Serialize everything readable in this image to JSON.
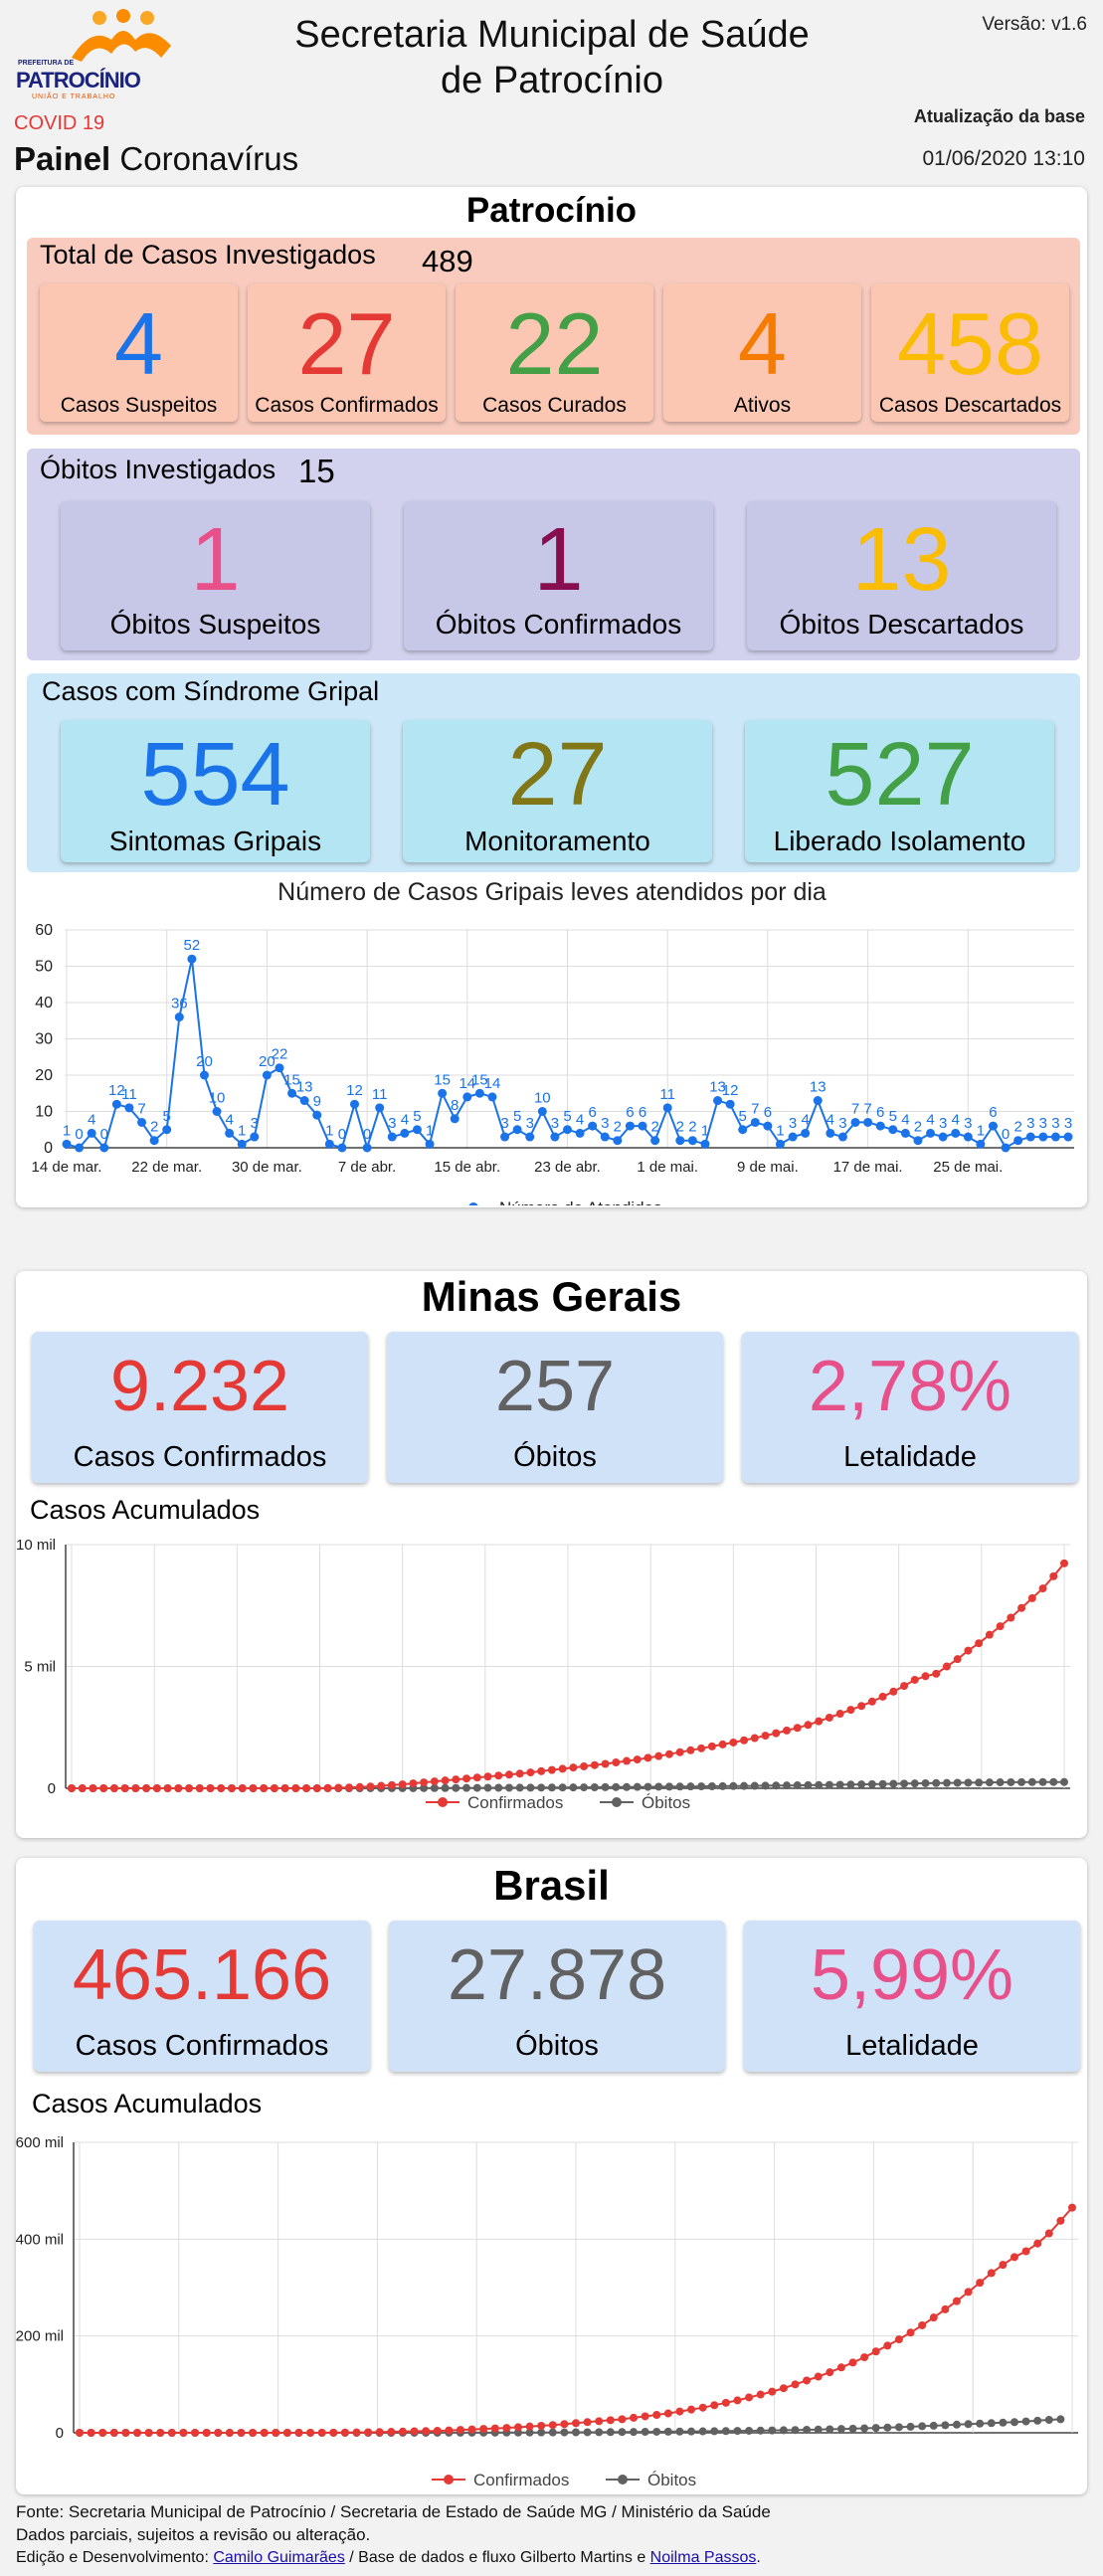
{
  "header": {
    "logo_text": "PATROCÍNIO",
    "logo_small": "PREFEITURA DE",
    "logo_tag": "UNIÃO E TRABALHO",
    "title_line1": "Secretaria Municipal de Saúde",
    "title_line2": "de Patrocínio",
    "version": "Versão: v1.6",
    "covid": "COVID 19",
    "painel_bold": "Painel",
    "painel_rest": "Coronavírus",
    "update_label": "Atualização da base",
    "update_value": "01/06/2020 13:10"
  },
  "patrocinio": {
    "title": "Patrocínio",
    "total_label": "Total de Casos Investigados",
    "total_value": "489",
    "cases": [
      {
        "value": "4",
        "label": "Casos Suspeitos",
        "color": "#1a73e8"
      },
      {
        "value": "27",
        "label": "Casos Confirmados",
        "color": "#e53935"
      },
      {
        "value": "22",
        "label": "Casos Curados",
        "color": "#43a047"
      },
      {
        "value": "4",
        "label": "Ativos",
        "color": "#f57c00"
      },
      {
        "value": "458",
        "label": "Casos Descartados",
        "color": "#fbbc04"
      }
    ],
    "obitos_label": "Óbitos Investigados",
    "obitos_value": "15",
    "obitos": [
      {
        "value": "1",
        "label": "Óbitos Suspeitos",
        "color": "#e8508a"
      },
      {
        "value": "1",
        "label": "Óbitos Confirmados",
        "color": "#880e4f"
      },
      {
        "value": "13",
        "label": "Óbitos Descartados",
        "color": "#fbbc04"
      }
    ],
    "sindrome_label": "Casos com Síndrome Gripal",
    "sindrome": [
      {
        "value": "554",
        "label": "Sintomas Gripais",
        "color": "#1a73e8"
      },
      {
        "value": "27",
        "label": "Monitoramento",
        "color": "#827717"
      },
      {
        "value": "527",
        "label": "Liberado Isolamento",
        "color": "#43a047"
      }
    ]
  },
  "minas": {
    "title": "Minas Gerais",
    "tiles": [
      {
        "value": "9.232",
        "label": "Casos Confirmados",
        "color": "#e53935"
      },
      {
        "value": "257",
        "label": "Óbitos",
        "color": "#616161"
      },
      {
        "value": "2,78%",
        "label": "Letalidade",
        "color": "#e8508a"
      }
    ]
  },
  "brasil": {
    "title": "Brasil",
    "tiles": [
      {
        "value": "465.166",
        "label": "Casos Confirmados",
        "color": "#e53935"
      },
      {
        "value": "27.878",
        "label": "Óbitos",
        "color": "#616161"
      },
      {
        "value": "5,99%",
        "label": "Letalidade",
        "color": "#e8508a"
      }
    ]
  },
  "footer": {
    "line1": "Fonte: Secretaria Municipal de Patrocínio / Secretaria de Estado de Saúde MG / Ministério da Saúde",
    "line2": "Dados parciais, sujeitos a revisão ou alteração.",
    "line3_a": "Edição e Desenvolvimento:",
    "link1": "Camilo Guimarães",
    "line3_b": "/ Base de dados e fluxo Gilberto Martins e",
    "link2": "Noilma Passos",
    "line3_c": "."
  },
  "chart_data": [
    {
      "type": "line",
      "title": "Número de Casos Gripais leves atendidos por dia",
      "x_tick_labels": [
        "14 de mar.",
        "22 de mar.",
        "30 de mar.",
        "7 de abr.",
        "15 de abr.",
        "23 de abr.",
        "1 de mai.",
        "9 de mai.",
        "17 de mai.",
        "25 de mai."
      ],
      "y_ticks": [
        0,
        10,
        20,
        30,
        40,
        50,
        60
      ],
      "ylim": [
        0,
        60
      ],
      "series": [
        {
          "name": "Número de Atendidos",
          "color": "#1a73e8",
          "values": [
            1,
            0,
            4,
            0,
            12,
            11,
            7,
            2,
            5,
            36,
            52,
            20,
            10,
            4,
            1,
            3,
            20,
            22,
            15,
            13,
            9,
            1,
            0,
            12,
            0,
            11,
            3,
            4,
            5,
            1,
            15,
            8,
            14,
            15,
            14,
            3,
            5,
            3,
            10,
            3,
            5,
            4,
            6,
            3,
            2,
            6,
            6,
            2,
            11,
            2,
            2,
            1,
            13,
            12,
            5,
            7,
            6,
            1,
            3,
            4,
            13,
            4,
            3,
            7,
            7,
            6,
            5,
            4,
            2,
            4,
            3,
            4,
            3,
            1,
            6,
            0,
            2,
            3,
            3,
            3,
            3
          ]
        }
      ],
      "legend": "bottom"
    },
    {
      "type": "line",
      "title": "Casos Acumulados",
      "y_tick_labels": [
        "0",
        "5 mil",
        "10 mil"
      ],
      "ylim": [
        0,
        10000
      ],
      "series": [
        {
          "name": "Confirmados",
          "color": "#e53935",
          "values": [
            0,
            0,
            0,
            0,
            0,
            0,
            0,
            0,
            0,
            0,
            0,
            0,
            0,
            0,
            0,
            0,
            0,
            0,
            0,
            0,
            0,
            0,
            0,
            0,
            10,
            20,
            30,
            50,
            70,
            100,
            130,
            160,
            200,
            240,
            280,
            320,
            360,
            400,
            440,
            480,
            520,
            560,
            600,
            650,
            700,
            750,
            800,
            850,
            900,
            950,
            1000,
            1060,
            1120,
            1180,
            1250,
            1320,
            1400,
            1480,
            1560,
            1640,
            1720,
            1800,
            1880,
            1970,
            2060,
            2160,
            2260,
            2370,
            2480,
            2600,
            2750,
            2900,
            3060,
            3220,
            3380,
            3560,
            3760,
            3970,
            4200,
            4450,
            4600,
            4700,
            5000,
            5300,
            5650,
            5950,
            6300,
            6650,
            7000,
            7400,
            7800,
            8200,
            8700,
            9232
          ]
        },
        {
          "name": "Óbitos",
          "color": "#616161",
          "values": [
            0,
            0,
            0,
            0,
            0,
            0,
            0,
            0,
            0,
            0,
            0,
            0,
            0,
            0,
            0,
            0,
            0,
            0,
            0,
            0,
            0,
            0,
            0,
            0,
            0,
            0,
            0,
            0,
            1,
            2,
            3,
            4,
            5,
            6,
            8,
            10,
            12,
            14,
            16,
            18,
            20,
            22,
            24,
            26,
            28,
            30,
            32,
            35,
            38,
            41,
            44,
            47,
            50,
            54,
            58,
            62,
            66,
            70,
            74,
            78,
            82,
            86,
            90,
            95,
            100,
            105,
            110,
            115,
            120,
            126,
            132,
            138,
            145,
            152,
            159,
            166,
            174,
            182,
            190,
            198,
            205,
            212,
            218,
            224,
            229,
            234,
            239,
            243,
            247,
            250,
            253,
            255,
            256,
            257
          ]
        }
      ],
      "legend": "bottom"
    },
    {
      "type": "line",
      "title": "Casos Acumulados",
      "y_tick_labels": [
        "0",
        "200 mil",
        "400 mil",
        "600 mil"
      ],
      "ylim": [
        0,
        600000
      ],
      "series": [
        {
          "name": "Confirmados",
          "color": "#e53935",
          "values": [
            0,
            0,
            0,
            0,
            0,
            0,
            0,
            0,
            0,
            0,
            0,
            0,
            0,
            0,
            0,
            0,
            0,
            0,
            0,
            0,
            100,
            200,
            300,
            500,
            700,
            1000,
            1500,
            2000,
            2500,
            3000,
            3500,
            4000,
            5000,
            6000,
            7000,
            8000,
            9000,
            10000,
            11500,
            13000,
            14500,
            16000,
            18000,
            20000,
            22000,
            24000,
            26000,
            28000,
            31000,
            34000,
            37000,
            40000,
            44000,
            48000,
            52000,
            57000,
            62000,
            67000,
            73000,
            79000,
            85000,
            92000,
            100000,
            108000,
            116000,
            125000,
            135000,
            145000,
            156000,
            168000,
            180000,
            193000,
            207000,
            222000,
            238000,
            255000,
            272000,
            291000,
            310000,
            330000,
            347000,
            363000,
            375000,
            391000,
            412000,
            438000,
            465166
          ]
        },
        {
          "name": "Óbitos",
          "color": "#616161",
          "values": [
            0,
            0,
            0,
            0,
            0,
            0,
            0,
            0,
            0,
            0,
            0,
            0,
            0,
            0,
            0,
            0,
            0,
            0,
            0,
            0,
            0,
            0,
            0,
            0,
            0,
            0,
            10,
            20,
            40,
            60,
            90,
            120,
            160,
            200,
            250,
            300,
            360,
            430,
            500,
            580,
            670,
            770,
            880,
            1000,
            1130,
            1270,
            1420,
            1580,
            1750,
            1930,
            2120,
            2330,
            2550,
            2780,
            3030,
            3300,
            3600,
            3900,
            4200,
            4550,
            4900,
            5300,
            5750,
            6200,
            6700,
            7300,
            7900,
            8500,
            9200,
            10000,
            10800,
            11600,
            12500,
            13500,
            14600,
            15700,
            16900,
            18000,
            19000,
            20000,
            21000,
            22000,
            23500,
            25000,
            26700,
            27878
          ]
        }
      ],
      "legend": "bottom"
    }
  ]
}
